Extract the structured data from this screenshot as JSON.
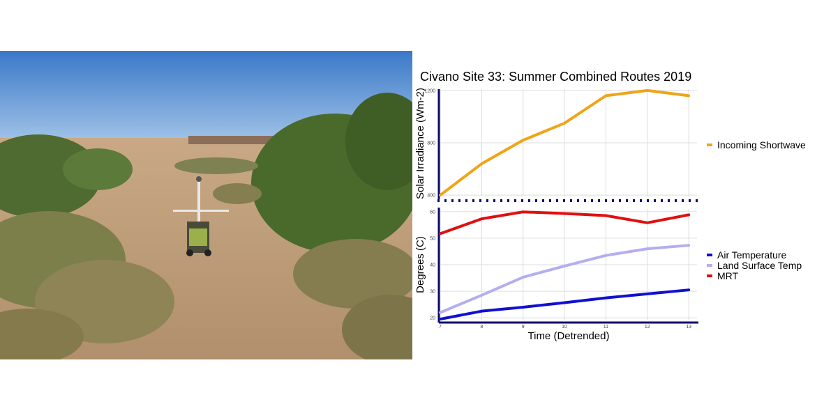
{
  "photo": {
    "icon": "field-site-photo-icon"
  },
  "chart_data": {
    "title": "Civano Site 33: Summer Combined Routes 2019",
    "xlabel": "Time (Detrended)",
    "x": [
      7,
      8,
      9,
      10,
      11,
      12,
      13
    ],
    "x_tick_labels": [
      "7",
      "8",
      "9",
      "10",
      "11",
      "12",
      "13"
    ],
    "xlim": [
      7,
      13.2
    ],
    "panels": [
      {
        "type": "line",
        "ylabel": "Solar Irradiance (Wm-2)",
        "ylim": [
          390,
          1210
        ],
        "y_ticks": [
          400,
          800,
          1200
        ],
        "series": [
          {
            "name": "Incoming Shortwave",
            "color": "#f0a418",
            "x": [
              7,
              8,
              9,
              10,
              11,
              12,
              13
            ],
            "values": [
              400,
              640,
              820,
              950,
              1160,
              1200,
              1160
            ]
          }
        ]
      },
      {
        "type": "line",
        "ylabel": "Degrees (C)",
        "ylim": [
          19,
          61
        ],
        "y_ticks": [
          20,
          30,
          40,
          50,
          60
        ],
        "series": [
          {
            "name": "Air Temperature",
            "color": "#1010d0",
            "x": [
              7,
              8,
              9,
              10,
              11,
              12,
              13
            ],
            "values": [
              19.5,
              22.5,
              24.0,
              25.7,
              27.5,
              29.0,
              30.5
            ]
          },
          {
            "name": "Land Surface Temp",
            "color": "#b4aef0",
            "x": [
              7,
              8,
              9,
              10,
              11,
              12,
              13
            ],
            "values": [
              22.0,
              28.5,
              35.3,
              39.5,
              43.5,
              46.0,
              47.3
            ]
          },
          {
            "name": "MRT",
            "color": "#e01010",
            "x": [
              7,
              8,
              9,
              10,
              11,
              12,
              13
            ],
            "values": [
              51.7,
              57.3,
              59.9,
              59.3,
              58.5,
              55.8,
              58.8
            ]
          }
        ]
      }
    ]
  }
}
